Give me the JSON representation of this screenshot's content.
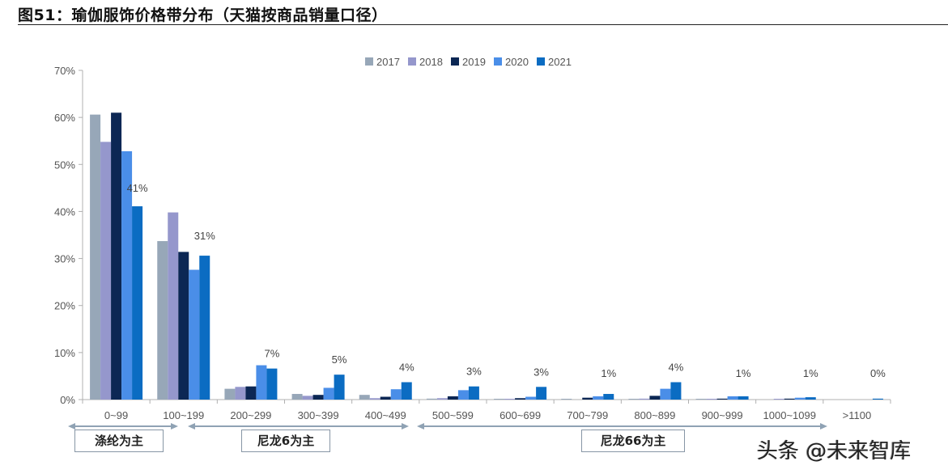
{
  "title": "图51：瑜伽服饰价格带分布（天猫按商品销量口径）",
  "watermark": "头条 @未来智库",
  "colors": {
    "2017": "#97a7b8",
    "2018": "#9597cc",
    "2019": "#0c2754",
    "2020": "#4a8ee8",
    "2021": "#0b6cc2",
    "axis": "#b0b0b0",
    "arrow": "#8fa2b4"
  },
  "chart_data": {
    "type": "bar",
    "title": "图51：瑜伽服饰价格带分布（天猫按商品销量口径）",
    "xlabel": "",
    "ylabel": "",
    "ylim": [
      0,
      70
    ],
    "yticks": [
      "0%",
      "10%",
      "20%",
      "30%",
      "40%",
      "50%",
      "60%",
      "70%"
    ],
    "grid": false,
    "legend_position": "top",
    "categories": [
      "0~99",
      "100~199",
      "200~299",
      "300~399",
      "400~499",
      "500~599",
      "600~699",
      "700~799",
      "800~899",
      "900~999",
      "1000~1099",
      ">1100"
    ],
    "series": [
      {
        "name": "2017",
        "values": [
          60.6,
          33.7,
          2.3,
          1.2,
          1.0,
          0.2,
          0.1,
          0.1,
          0.1,
          0.1,
          0.0,
          0.0
        ]
      },
      {
        "name": "2018",
        "values": [
          54.8,
          39.8,
          2.7,
          0.8,
          0.3,
          0.3,
          0.1,
          0.0,
          0.2,
          0.1,
          0.1,
          0.0
        ]
      },
      {
        "name": "2019",
        "values": [
          61.0,
          31.4,
          2.8,
          1.0,
          0.6,
          0.7,
          0.3,
          0.4,
          0.8,
          0.2,
          0.2,
          0.0
        ]
      },
      {
        "name": "2020",
        "values": [
          52.8,
          27.6,
          7.3,
          2.5,
          2.2,
          2.0,
          0.6,
          0.7,
          2.3,
          0.7,
          0.4,
          0.0
        ]
      },
      {
        "name": "2021",
        "values": [
          41.1,
          30.6,
          6.6,
          5.3,
          3.7,
          2.8,
          2.7,
          1.2,
          3.7,
          0.7,
          0.5,
          0.2
        ]
      }
    ],
    "annotations": [
      "41%",
      "31%",
      "7%",
      "5%",
      "4%",
      "3%",
      "3%",
      "1%",
      "4%",
      "1%",
      "1%",
      "0%"
    ],
    "groupings": [
      {
        "label": "涤纶为主",
        "from": 0,
        "to": 1
      },
      {
        "label": "尼龙6为主",
        "from": 1,
        "to": 4
      },
      {
        "label": "尼龙66为主",
        "from": 5,
        "to": 10
      }
    ]
  }
}
